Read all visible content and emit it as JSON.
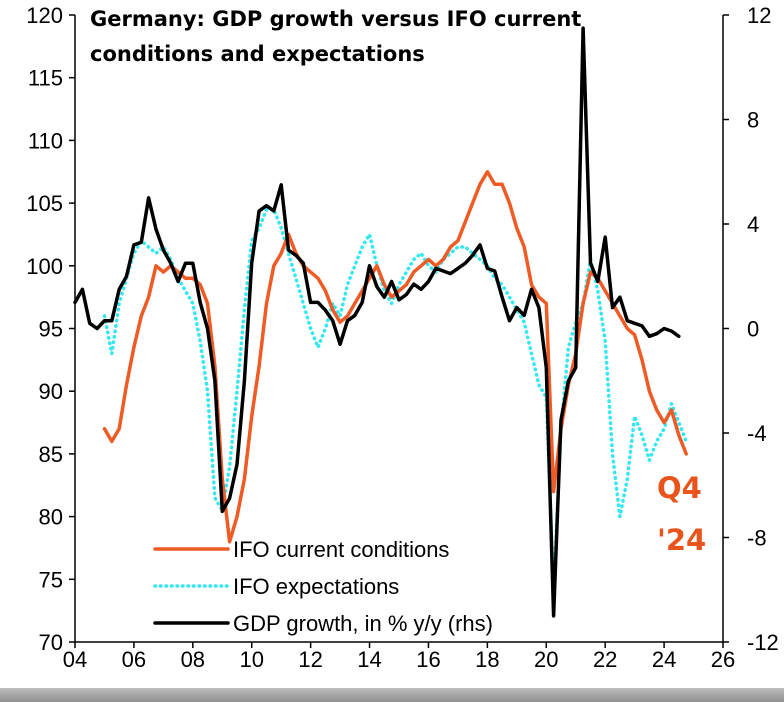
{
  "chart_data": {
    "type": "line",
    "title": "Germany: GDP growth versus IFO current conditions and expectations",
    "title_lines": [
      "Germany: GDP growth versus IFO current",
      "conditions and expectations"
    ],
    "xlim": [
      2004,
      2026
    ],
    "ylim_left": [
      70,
      120
    ],
    "ylim_right": [
      -12,
      12
    ],
    "x_ticks": [
      2004,
      2006,
      2008,
      2010,
      2012,
      2014,
      2016,
      2018,
      2020,
      2022,
      2024,
      2026
    ],
    "x_tick_labels": [
      "04",
      "06",
      "08",
      "10",
      "12",
      "14",
      "16",
      "18",
      "20",
      "22",
      "24",
      "26"
    ],
    "y_left_ticks": [
      70,
      75,
      80,
      85,
      90,
      95,
      100,
      105,
      110,
      115,
      120
    ],
    "y_right_ticks": [
      -12,
      -8,
      -4,
      0,
      4,
      8,
      12
    ],
    "legend_position": "bottom-left",
    "annotation": {
      "line1": "Q4",
      "line2": "'24"
    },
    "series": [
      {
        "name": "IFO current conditions",
        "axis": "left",
        "color": "#ef5b25",
        "style": "solid",
        "points": [
          [
            2005.0,
            87.0
          ],
          [
            2005.25,
            86.0
          ],
          [
            2005.5,
            87.0
          ],
          [
            2005.75,
            90.5
          ],
          [
            2006.0,
            93.5
          ],
          [
            2006.25,
            96.0
          ],
          [
            2006.5,
            97.5
          ],
          [
            2006.75,
            100.0
          ],
          [
            2007.0,
            99.5
          ],
          [
            2007.25,
            100.0
          ],
          [
            2007.5,
            99.5
          ],
          [
            2007.75,
            99.0
          ],
          [
            2008.0,
            99.0
          ],
          [
            2008.25,
            98.5
          ],
          [
            2008.5,
            97.0
          ],
          [
            2008.75,
            92.0
          ],
          [
            2009.0,
            83.0
          ],
          [
            2009.25,
            78.0
          ],
          [
            2009.5,
            80.0
          ],
          [
            2009.75,
            83.0
          ],
          [
            2010.0,
            88.0
          ],
          [
            2010.25,
            92.0
          ],
          [
            2010.5,
            97.0
          ],
          [
            2010.75,
            100.0
          ],
          [
            2011.0,
            101.0
          ],
          [
            2011.25,
            102.5
          ],
          [
            2011.5,
            101.0
          ],
          [
            2011.75,
            100.0
          ],
          [
            2012.0,
            99.5
          ],
          [
            2012.25,
            99.0
          ],
          [
            2012.5,
            98.0
          ],
          [
            2012.75,
            96.5
          ],
          [
            2013.0,
            95.5
          ],
          [
            2013.25,
            96.0
          ],
          [
            2013.5,
            97.0
          ],
          [
            2013.75,
            98.0
          ],
          [
            2014.0,
            99.0
          ],
          [
            2014.25,
            100.0
          ],
          [
            2014.5,
            98.5
          ],
          [
            2014.75,
            97.5
          ],
          [
            2015.0,
            98.0
          ],
          [
            2015.25,
            98.5
          ],
          [
            2015.5,
            99.5
          ],
          [
            2015.75,
            100.0
          ],
          [
            2016.0,
            100.5
          ],
          [
            2016.25,
            100.0
          ],
          [
            2016.5,
            100.5
          ],
          [
            2016.75,
            101.5
          ],
          [
            2017.0,
            102.0
          ],
          [
            2017.25,
            103.5
          ],
          [
            2017.5,
            105.0
          ],
          [
            2017.75,
            106.5
          ],
          [
            2018.0,
            107.5
          ],
          [
            2018.25,
            106.5
          ],
          [
            2018.5,
            106.5
          ],
          [
            2018.75,
            105.0
          ],
          [
            2019.0,
            103.0
          ],
          [
            2019.25,
            101.5
          ],
          [
            2019.5,
            98.5
          ],
          [
            2019.75,
            97.5
          ],
          [
            2020.0,
            97.0
          ],
          [
            2020.25,
            82.0
          ],
          [
            2020.5,
            87.0
          ],
          [
            2020.75,
            90.5
          ],
          [
            2021.0,
            93.0
          ],
          [
            2021.25,
            97.0
          ],
          [
            2021.5,
            99.5
          ],
          [
            2021.75,
            99.0
          ],
          [
            2022.0,
            98.0
          ],
          [
            2022.25,
            97.0
          ],
          [
            2022.5,
            96.0
          ],
          [
            2022.75,
            95.0
          ],
          [
            2023.0,
            94.5
          ],
          [
            2023.25,
            92.5
          ],
          [
            2023.5,
            90.0
          ],
          [
            2023.75,
            88.5
          ],
          [
            2024.0,
            87.5
          ],
          [
            2024.25,
            88.5
          ],
          [
            2024.5,
            86.5
          ],
          [
            2024.75,
            85.0
          ]
        ]
      },
      {
        "name": "IFO expectations",
        "axis": "left",
        "color": "#33e8f0",
        "style": "dotted",
        "points": [
          [
            2005.0,
            96.0
          ],
          [
            2005.25,
            93.0
          ],
          [
            2005.5,
            97.0
          ],
          [
            2005.75,
            99.0
          ],
          [
            2006.0,
            101.0
          ],
          [
            2006.25,
            102.0
          ],
          [
            2006.5,
            101.5
          ],
          [
            2006.75,
            101.0
          ],
          [
            2007.0,
            101.5
          ],
          [
            2007.25,
            100.5
          ],
          [
            2007.5,
            99.0
          ],
          [
            2007.75,
            98.0
          ],
          [
            2008.0,
            97.0
          ],
          [
            2008.25,
            94.0
          ],
          [
            2008.5,
            90.0
          ],
          [
            2008.75,
            81.5
          ],
          [
            2009.0,
            80.5
          ],
          [
            2009.25,
            84.0
          ],
          [
            2009.5,
            90.0
          ],
          [
            2009.75,
            96.5
          ],
          [
            2010.0,
            102.0
          ],
          [
            2010.25,
            103.0
          ],
          [
            2010.5,
            104.5
          ],
          [
            2010.75,
            104.5
          ],
          [
            2011.0,
            103.0
          ],
          [
            2011.25,
            101.0
          ],
          [
            2011.5,
            99.0
          ],
          [
            2011.75,
            97.0
          ],
          [
            2012.0,
            95.0
          ],
          [
            2012.25,
            93.5
          ],
          [
            2012.5,
            95.0
          ],
          [
            2012.75,
            97.0
          ],
          [
            2013.0,
            96.0
          ],
          [
            2013.25,
            98.5
          ],
          [
            2013.5,
            100.0
          ],
          [
            2013.75,
            101.5
          ],
          [
            2014.0,
            102.5
          ],
          [
            2014.25,
            100.0
          ],
          [
            2014.5,
            98.0
          ],
          [
            2014.75,
            97.0
          ],
          [
            2015.0,
            98.5
          ],
          [
            2015.25,
            99.5
          ],
          [
            2015.5,
            100.5
          ],
          [
            2015.75,
            101.0
          ],
          [
            2016.0,
            100.0
          ],
          [
            2016.25,
            99.5
          ],
          [
            2016.5,
            100.5
          ],
          [
            2016.75,
            101.0
          ],
          [
            2017.0,
            101.5
          ],
          [
            2017.25,
            101.5
          ],
          [
            2017.5,
            101.0
          ],
          [
            2017.75,
            100.5
          ],
          [
            2018.0,
            100.0
          ],
          [
            2018.25,
            99.0
          ],
          [
            2018.5,
            98.5
          ],
          [
            2018.75,
            97.5
          ],
          [
            2019.0,
            96.5
          ],
          [
            2019.25,
            95.5
          ],
          [
            2019.5,
            93.0
          ],
          [
            2019.75,
            90.5
          ],
          [
            2020.0,
            89.5
          ],
          [
            2020.25,
            74.0
          ],
          [
            2020.5,
            87.0
          ],
          [
            2020.75,
            93.5
          ],
          [
            2021.0,
            95.5
          ],
          [
            2021.25,
            97.0
          ],
          [
            2021.5,
            100.5
          ],
          [
            2021.75,
            98.0
          ],
          [
            2022.0,
            94.0
          ],
          [
            2022.25,
            85.0
          ],
          [
            2022.5,
            80.0
          ],
          [
            2022.75,
            83.0
          ],
          [
            2023.0,
            88.0
          ],
          [
            2023.25,
            86.5
          ],
          [
            2023.5,
            84.5
          ],
          [
            2023.75,
            86.0
          ],
          [
            2024.0,
            87.0
          ],
          [
            2024.25,
            89.0
          ],
          [
            2024.5,
            87.5
          ],
          [
            2024.75,
            86.0
          ]
        ]
      },
      {
        "name": "GDP growth, in % y/y (rhs)",
        "axis": "right",
        "color": "#000000",
        "style": "solid",
        "points": [
          [
            2004.0,
            1.0
          ],
          [
            2004.25,
            1.5
          ],
          [
            2004.5,
            0.2
          ],
          [
            2004.75,
            0.0
          ],
          [
            2005.0,
            0.3
          ],
          [
            2005.25,
            0.3
          ],
          [
            2005.5,
            1.5
          ],
          [
            2005.75,
            2.0
          ],
          [
            2006.0,
            3.2
          ],
          [
            2006.25,
            3.3
          ],
          [
            2006.5,
            5.0
          ],
          [
            2006.75,
            3.8
          ],
          [
            2007.0,
            3.0
          ],
          [
            2007.25,
            2.5
          ],
          [
            2007.5,
            1.8
          ],
          [
            2007.75,
            2.5
          ],
          [
            2008.0,
            2.5
          ],
          [
            2008.25,
            1.0
          ],
          [
            2008.5,
            0.0
          ],
          [
            2008.75,
            -2.0
          ],
          [
            2009.0,
            -7.0
          ],
          [
            2009.25,
            -6.5
          ],
          [
            2009.5,
            -5.2
          ],
          [
            2009.75,
            -2.0
          ],
          [
            2010.0,
            2.5
          ],
          [
            2010.25,
            4.5
          ],
          [
            2010.5,
            4.7
          ],
          [
            2010.75,
            4.5
          ],
          [
            2011.0,
            5.5
          ],
          [
            2011.25,
            3.0
          ],
          [
            2011.5,
            2.8
          ],
          [
            2011.75,
            2.5
          ],
          [
            2012.0,
            1.0
          ],
          [
            2012.25,
            1.0
          ],
          [
            2012.5,
            0.7
          ],
          [
            2012.75,
            0.3
          ],
          [
            2013.0,
            -0.6
          ],
          [
            2013.25,
            0.3
          ],
          [
            2013.5,
            0.5
          ],
          [
            2013.75,
            1.0
          ],
          [
            2014.0,
            2.4
          ],
          [
            2014.25,
            1.6
          ],
          [
            2014.5,
            1.2
          ],
          [
            2014.75,
            1.8
          ],
          [
            2015.0,
            1.1
          ],
          [
            2015.25,
            1.3
          ],
          [
            2015.5,
            1.7
          ],
          [
            2015.75,
            1.5
          ],
          [
            2016.0,
            1.8
          ],
          [
            2016.25,
            2.3
          ],
          [
            2016.5,
            2.2
          ],
          [
            2016.75,
            2.1
          ],
          [
            2017.0,
            2.3
          ],
          [
            2017.25,
            2.5
          ],
          [
            2017.5,
            2.8
          ],
          [
            2017.75,
            3.2
          ],
          [
            2018.0,
            2.3
          ],
          [
            2018.25,
            2.2
          ],
          [
            2018.5,
            1.2
          ],
          [
            2018.75,
            0.3
          ],
          [
            2019.0,
            0.8
          ],
          [
            2019.25,
            0.5
          ],
          [
            2019.5,
            1.5
          ],
          [
            2019.75,
            0.8
          ],
          [
            2020.0,
            -1.5
          ],
          [
            2020.25,
            -11.0
          ],
          [
            2020.5,
            -3.5
          ],
          [
            2020.75,
            -2.0
          ],
          [
            2021.0,
            -1.5
          ],
          [
            2021.25,
            11.5
          ],
          [
            2021.5,
            2.5
          ],
          [
            2021.75,
            1.8
          ],
          [
            2022.0,
            3.5
          ],
          [
            2022.25,
            0.8
          ],
          [
            2022.5,
            1.2
          ],
          [
            2022.75,
            0.3
          ],
          [
            2023.0,
            0.2
          ],
          [
            2023.25,
            0.1
          ],
          [
            2023.5,
            -0.3
          ],
          [
            2023.75,
            -0.2
          ],
          [
            2024.0,
            0.0
          ],
          [
            2024.25,
            -0.1
          ],
          [
            2024.5,
            -0.3
          ]
        ]
      }
    ]
  }
}
